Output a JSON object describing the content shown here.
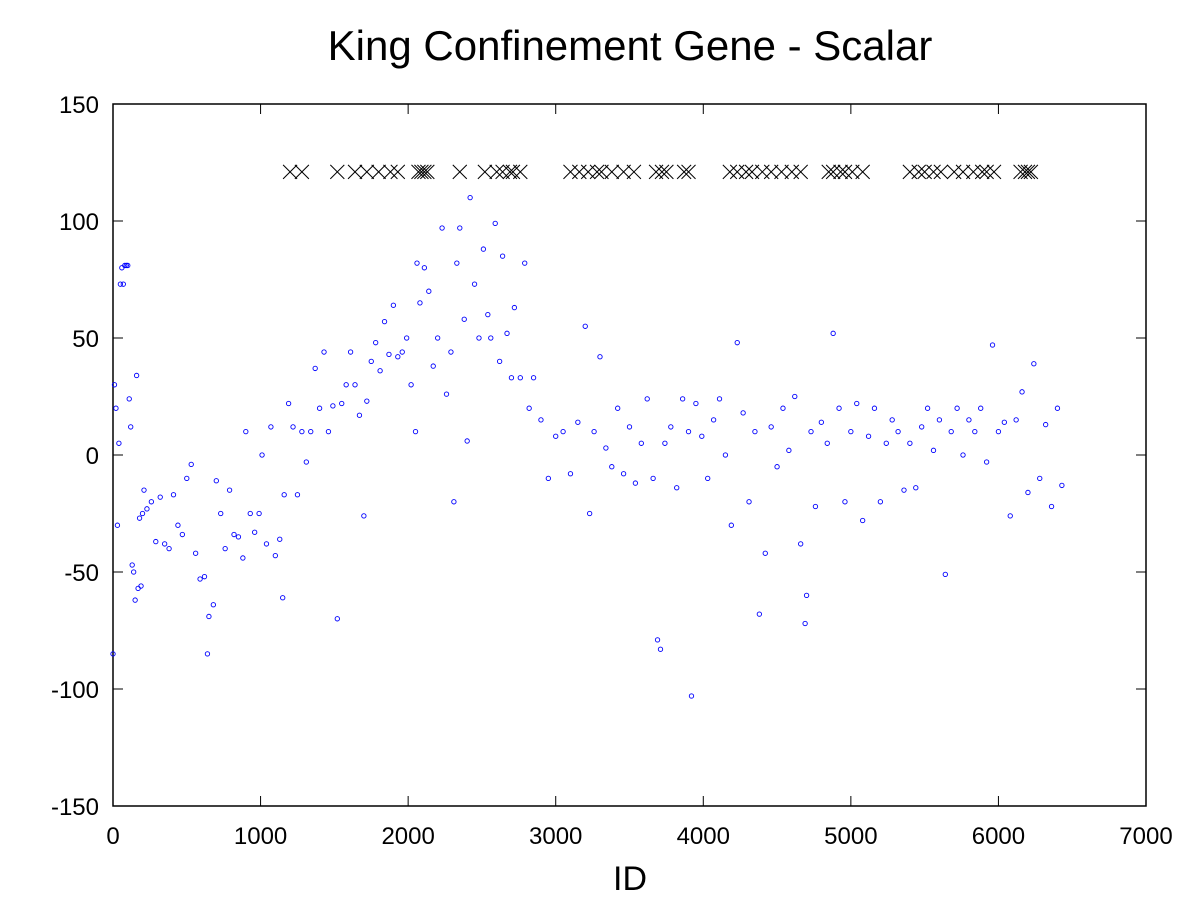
{
  "chart_data": {
    "type": "scatter",
    "title": "King Confinement Gene - Scalar",
    "xlabel": "ID",
    "ylabel": "",
    "xlim": [
      0,
      7000
    ],
    "ylim": [
      -150,
      150
    ],
    "xticks": [
      0,
      1000,
      2000,
      3000,
      4000,
      5000,
      6000,
      7000
    ],
    "yticks": [
      -150,
      -100,
      -50,
      0,
      50,
      100,
      150
    ],
    "grid": false,
    "legend": "none",
    "colors": {
      "scatter": "#0000ff",
      "markers": "#000000"
    },
    "series": [
      {
        "marker": "circle",
        "points": [
          [
            0,
            -85
          ],
          [
            10,
            30
          ],
          [
            20,
            20
          ],
          [
            30,
            -30
          ],
          [
            40,
            5
          ],
          [
            50,
            73
          ],
          [
            60,
            80
          ],
          [
            70,
            73
          ],
          [
            80,
            81
          ],
          [
            90,
            81
          ],
          [
            100,
            81
          ],
          [
            110,
            24
          ],
          [
            120,
            12
          ],
          [
            130,
            -47
          ],
          [
            140,
            -50
          ],
          [
            150,
            -62
          ],
          [
            160,
            34
          ],
          [
            170,
            -57
          ],
          [
            180,
            -27
          ],
          [
            190,
            -56
          ],
          [
            200,
            -25
          ],
          [
            210,
            -15
          ],
          [
            230,
            -23
          ],
          [
            260,
            -20
          ],
          [
            290,
            -37
          ],
          [
            320,
            -18
          ],
          [
            350,
            -38
          ],
          [
            380,
            -40
          ],
          [
            410,
            -17
          ],
          [
            440,
            -30
          ],
          [
            470,
            -34
          ],
          [
            500,
            -10
          ],
          [
            530,
            -4
          ],
          [
            560,
            -42
          ],
          [
            590,
            -53
          ],
          [
            620,
            -52
          ],
          [
            640,
            -85
          ],
          [
            650,
            -69
          ],
          [
            680,
            -64
          ],
          [
            700,
            -11
          ],
          [
            730,
            -25
          ],
          [
            760,
            -40
          ],
          [
            790,
            -15
          ],
          [
            820,
            -34
          ],
          [
            850,
            -35
          ],
          [
            880,
            -44
          ],
          [
            900,
            10
          ],
          [
            930,
            -25
          ],
          [
            960,
            -33
          ],
          [
            990,
            -25
          ],
          [
            1010,
            0
          ],
          [
            1040,
            -38
          ],
          [
            1070,
            12
          ],
          [
            1100,
            -43
          ],
          [
            1130,
            -36
          ],
          [
            1150,
            -61
          ],
          [
            1160,
            -17
          ],
          [
            1190,
            22
          ],
          [
            1220,
            12
          ],
          [
            1250,
            -17
          ],
          [
            1280,
            10
          ],
          [
            1310,
            -3
          ],
          [
            1340,
            10
          ],
          [
            1370,
            37
          ],
          [
            1400,
            20
          ],
          [
            1430,
            44
          ],
          [
            1460,
            10
          ],
          [
            1490,
            21
          ],
          [
            1520,
            -70
          ],
          [
            1550,
            22
          ],
          [
            1580,
            30
          ],
          [
            1610,
            44
          ],
          [
            1640,
            30
          ],
          [
            1670,
            17
          ],
          [
            1700,
            -26
          ],
          [
            1720,
            23
          ],
          [
            1750,
            40
          ],
          [
            1780,
            48
          ],
          [
            1810,
            36
          ],
          [
            1840,
            57
          ],
          [
            1870,
            43
          ],
          [
            1900,
            64
          ],
          [
            1930,
            42
          ],
          [
            1960,
            44
          ],
          [
            1990,
            50
          ],
          [
            2020,
            30
          ],
          [
            2050,
            10
          ],
          [
            2060,
            82
          ],
          [
            2080,
            65
          ],
          [
            2110,
            80
          ],
          [
            2140,
            70
          ],
          [
            2170,
            38
          ],
          [
            2200,
            50
          ],
          [
            2230,
            97
          ],
          [
            2260,
            26
          ],
          [
            2290,
            44
          ],
          [
            2310,
            -20
          ],
          [
            2330,
            82
          ],
          [
            2350,
            97
          ],
          [
            2380,
            58
          ],
          [
            2400,
            6
          ],
          [
            2420,
            110
          ],
          [
            2450,
            73
          ],
          [
            2480,
            50
          ],
          [
            2510,
            88
          ],
          [
            2540,
            60
          ],
          [
            2560,
            50
          ],
          [
            2590,
            99
          ],
          [
            2620,
            40
          ],
          [
            2640,
            85
          ],
          [
            2670,
            52
          ],
          [
            2700,
            33
          ],
          [
            2720,
            63
          ],
          [
            2760,
            33
          ],
          [
            2790,
            82
          ],
          [
            2820,
            20
          ],
          [
            2850,
            33
          ],
          [
            2900,
            15
          ],
          [
            2950,
            -10
          ],
          [
            3000,
            8
          ],
          [
            3050,
            10
          ],
          [
            3100,
            -8
          ],
          [
            3150,
            14
          ],
          [
            3200,
            55
          ],
          [
            3230,
            -25
          ],
          [
            3260,
            10
          ],
          [
            3300,
            42
          ],
          [
            3340,
            3
          ],
          [
            3380,
            -5
          ],
          [
            3420,
            20
          ],
          [
            3460,
            -8
          ],
          [
            3500,
            12
          ],
          [
            3540,
            -12
          ],
          [
            3580,
            5
          ],
          [
            3620,
            24
          ],
          [
            3660,
            -10
          ],
          [
            3690,
            -79
          ],
          [
            3710,
            -83
          ],
          [
            3740,
            5
          ],
          [
            3780,
            12
          ],
          [
            3820,
            -14
          ],
          [
            3860,
            24
          ],
          [
            3900,
            10
          ],
          [
            3920,
            -103
          ],
          [
            3950,
            22
          ],
          [
            3990,
            8
          ],
          [
            4030,
            -10
          ],
          [
            4070,
            15
          ],
          [
            4110,
            24
          ],
          [
            4150,
            0
          ],
          [
            4190,
            -30
          ],
          [
            4230,
            48
          ],
          [
            4270,
            18
          ],
          [
            4310,
            -20
          ],
          [
            4350,
            10
          ],
          [
            4380,
            -68
          ],
          [
            4420,
            -42
          ],
          [
            4460,
            12
          ],
          [
            4500,
            -5
          ],
          [
            4540,
            20
          ],
          [
            4580,
            2
          ],
          [
            4620,
            25
          ],
          [
            4660,
            -38
          ],
          [
            4690,
            -72
          ],
          [
            4700,
            -60
          ],
          [
            4730,
            10
          ],
          [
            4760,
            -22
          ],
          [
            4800,
            14
          ],
          [
            4840,
            5
          ],
          [
            4880,
            52
          ],
          [
            4920,
            20
          ],
          [
            4960,
            -20
          ],
          [
            5000,
            10
          ],
          [
            5040,
            22
          ],
          [
            5080,
            -28
          ],
          [
            5120,
            8
          ],
          [
            5160,
            20
          ],
          [
            5200,
            -20
          ],
          [
            5240,
            5
          ],
          [
            5280,
            15
          ],
          [
            5320,
            10
          ],
          [
            5360,
            -15
          ],
          [
            5400,
            5
          ],
          [
            5440,
            -14
          ],
          [
            5480,
            12
          ],
          [
            5520,
            20
          ],
          [
            5560,
            2
          ],
          [
            5600,
            15
          ],
          [
            5640,
            -51
          ],
          [
            5680,
            10
          ],
          [
            5720,
            20
          ],
          [
            5760,
            0
          ],
          [
            5800,
            15
          ],
          [
            5840,
            10
          ],
          [
            5880,
            20
          ],
          [
            5920,
            -3
          ],
          [
            5960,
            47
          ],
          [
            6000,
            10
          ],
          [
            6040,
            14
          ],
          [
            6080,
            -26
          ],
          [
            6120,
            15
          ],
          [
            6160,
            27
          ],
          [
            6200,
            -16
          ],
          [
            6240,
            39
          ],
          [
            6280,
            -10
          ],
          [
            6320,
            13
          ],
          [
            6360,
            -22
          ],
          [
            6400,
            20
          ],
          [
            6430,
            -13
          ]
        ]
      },
      {
        "marker": "cross",
        "points": [
          [
            1200,
            121
          ],
          [
            1280,
            121
          ],
          [
            1520,
            121
          ],
          [
            1640,
            121
          ],
          [
            1720,
            121
          ],
          [
            1800,
            121
          ],
          [
            1880,
            121
          ],
          [
            1930,
            121
          ],
          [
            2070,
            121
          ],
          [
            2090,
            121
          ],
          [
            2110,
            121
          ],
          [
            2130,
            121
          ],
          [
            2350,
            121
          ],
          [
            2520,
            121
          ],
          [
            2600,
            121
          ],
          [
            2640,
            121
          ],
          [
            2690,
            121
          ],
          [
            2710,
            121
          ],
          [
            2760,
            121
          ],
          [
            3100,
            121
          ],
          [
            3160,
            121
          ],
          [
            3220,
            121
          ],
          [
            3280,
            121
          ],
          [
            3310,
            121
          ],
          [
            3380,
            121
          ],
          [
            3460,
            121
          ],
          [
            3530,
            121
          ],
          [
            3680,
            121
          ],
          [
            3720,
            121
          ],
          [
            3750,
            121
          ],
          [
            3870,
            121
          ],
          [
            3900,
            121
          ],
          [
            4180,
            121
          ],
          [
            4230,
            121
          ],
          [
            4290,
            121
          ],
          [
            4330,
            121
          ],
          [
            4400,
            121
          ],
          [
            4460,
            121
          ],
          [
            4530,
            121
          ],
          [
            4600,
            121
          ],
          [
            4660,
            121
          ],
          [
            4850,
            121
          ],
          [
            4880,
            121
          ],
          [
            4930,
            121
          ],
          [
            4960,
            121
          ],
          [
            5010,
            121
          ],
          [
            5080,
            121
          ],
          [
            5400,
            121
          ],
          [
            5460,
            121
          ],
          [
            5500,
            121
          ],
          [
            5560,
            121
          ],
          [
            5610,
            121
          ],
          [
            5700,
            121
          ],
          [
            5760,
            121
          ],
          [
            5830,
            121
          ],
          [
            5890,
            121
          ],
          [
            5920,
            121
          ],
          [
            5970,
            121
          ],
          [
            6150,
            121
          ],
          [
            6180,
            121
          ],
          [
            6200,
            121
          ],
          [
            6220,
            121
          ]
        ]
      }
    ]
  }
}
